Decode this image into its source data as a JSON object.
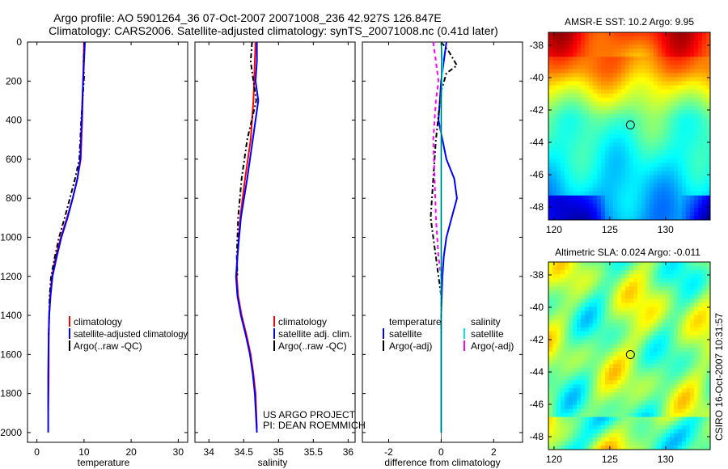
{
  "title_line1": "Argo profile: AO 5901264_36 07-Oct-2007 20071008_236 42.927S 126.847E",
  "title_line2": "Climatology: CARS2006. Satellite-adjusted climatology: synTS_20071008.nc (0.41d later)",
  "credit_line1": "US ARGO PROJECT",
  "credit_line2": "PI: DEAN ROEMMICH",
  "timestamp": "CSIRO 16-Oct-2007 10:31:57",
  "colors": {
    "climatology": "#ff0000",
    "satellite": "#0000ff",
    "argo": "#000000",
    "salinity_sat": "#00e5e5",
    "salinity_argo": "#ff00ff"
  },
  "chart_data": [
    {
      "type": "line",
      "xlabel": "temperature",
      "ylabel": "",
      "xlim": [
        -2,
        32
      ],
      "ylim": [
        2050,
        0
      ],
      "xticks": [
        0,
        10,
        20,
        30
      ],
      "yticks": [
        0,
        200,
        400,
        600,
        800,
        1000,
        1200,
        1400,
        1600,
        1800,
        2000
      ],
      "legend": [
        "climatology",
        "satellite-adjusted climatology",
        "Argo(..raw -QC)"
      ],
      "series": [
        {
          "name": "climatology",
          "x": [
            10.0,
            9.9,
            9.8,
            9.6,
            9.3,
            8.6,
            7.6,
            6.4,
            5.1,
            4.0,
            3.2,
            2.8,
            2.6,
            2.5,
            2.5,
            2.4
          ],
          "y": [
            0,
            100,
            200,
            400,
            600,
            700,
            800,
            900,
            1000,
            1100,
            1200,
            1300,
            1400,
            1500,
            1700,
            1880
          ]
        },
        {
          "name": "satellite-adjusted climatology",
          "x": [
            10.2,
            10.0,
            9.8,
            9.5,
            9.2,
            8.6,
            7.6,
            6.5,
            5.2,
            4.2,
            3.3,
            2.9,
            2.6,
            2.5,
            2.4,
            2.4
          ],
          "y": [
            0,
            100,
            200,
            400,
            600,
            700,
            800,
            900,
            1000,
            1100,
            1200,
            1300,
            1400,
            1500,
            1700,
            2000
          ]
        },
        {
          "name": "Argo(..raw -QC)",
          "x": [
            10.1,
            9.9,
            10.0,
            9.4,
            9.0,
            8.1,
            7.0,
            5.9,
            4.7,
            3.8,
            3.0,
            2.7,
            2.6,
            2.5
          ],
          "y": [
            0,
            100,
            180,
            400,
            600,
            700,
            800,
            900,
            1000,
            1100,
            1200,
            1300,
            1400,
            1500
          ]
        }
      ]
    },
    {
      "type": "line",
      "xlabel": "salinity",
      "xlim": [
        33.8,
        36.1
      ],
      "ylim": [
        2050,
        0
      ],
      "xticks": [
        34,
        34.5,
        35,
        35.5,
        36
      ],
      "legend": [
        "climatology",
        "satellite adj. clim.",
        "Argo(..raw -QC)"
      ],
      "series": [
        {
          "name": "climatology",
          "x": [
            34.67,
            34.66,
            34.65,
            34.64,
            34.6,
            34.52,
            34.45,
            34.41,
            34.4,
            34.42,
            34.47,
            34.54,
            34.6,
            34.64,
            34.67,
            34.69
          ],
          "y": [
            0,
            100,
            200,
            300,
            500,
            700,
            900,
            1100,
            1200,
            1300,
            1400,
            1500,
            1600,
            1700,
            1800,
            1980
          ]
        },
        {
          "name": "satellite adj. clim.",
          "x": [
            34.69,
            34.69,
            34.67,
            34.71,
            34.63,
            34.55,
            34.46,
            34.41,
            34.39,
            34.41,
            34.46,
            34.53,
            34.59,
            34.63,
            34.66,
            34.69
          ],
          "y": [
            0,
            100,
            200,
            300,
            500,
            700,
            900,
            1100,
            1200,
            1300,
            1400,
            1500,
            1600,
            1700,
            1800,
            2000
          ]
        },
        {
          "name": "Argo(..raw -QC)",
          "x": [
            34.62,
            34.6,
            34.64,
            34.68,
            34.55,
            34.47,
            34.42,
            34.4,
            34.41
          ],
          "y": [
            0,
            100,
            200,
            300,
            500,
            700,
            900,
            1100,
            1200
          ]
        }
      ]
    },
    {
      "type": "line",
      "xlabel": "difference from climatology",
      "xlim": [
        -3.0,
        3.1
      ],
      "ylim": [
        2050,
        0
      ],
      "xticks": [
        -2,
        0,
        2
      ],
      "legend_headers": [
        "temperature",
        "salinity"
      ],
      "legend": [
        "satellite",
        "Argo(-adj)",
        "satellite",
        "Argo(-adj)"
      ],
      "series": [
        {
          "name": "temperature satellite",
          "x": [
            0.2,
            0.1,
            0.0,
            -0.1,
            0.2,
            0.5,
            0.6,
            0.4,
            0.2,
            0.1,
            0.05,
            0.0,
            0.0,
            0.0,
            0.0
          ],
          "y": [
            0,
            100,
            200,
            400,
            600,
            700,
            800,
            900,
            1000,
            1100,
            1200,
            1400,
            1600,
            1800,
            2000
          ]
        },
        {
          "name": "temperature Argo(-adj)",
          "x": [
            0.0,
            0.3,
            0.6,
            0.2,
            0.0,
            -0.2,
            -0.3,
            -0.4,
            -0.3,
            -0.2,
            -0.1,
            0.0,
            0.0
          ],
          "y": [
            0,
            50,
            120,
            160,
            250,
            500,
            700,
            900,
            1000,
            1100,
            1200,
            1300,
            1500
          ]
        },
        {
          "name": "salinity satellite",
          "x": [
            0.0,
            0.05,
            0.0,
            0.0,
            0.0,
            0.0,
            0.0,
            0.0
          ],
          "y": [
            0,
            100,
            300,
            600,
            1000,
            1400,
            1800,
            2000
          ]
        },
        {
          "name": "salinity Argo(-adj)",
          "x": [
            -0.3,
            -0.2,
            -0.1,
            -0.2,
            -0.3,
            -0.25,
            -0.2,
            -0.1,
            0.0,
            0.0
          ],
          "y": [
            0,
            100,
            200,
            300,
            500,
            700,
            900,
            1100,
            1200,
            1300
          ]
        }
      ]
    },
    {
      "type": "heatmap",
      "title": "AMSR-E SST: 10.2 Argo: 9.95",
      "xlim": [
        119.5,
        134.0
      ],
      "ylim": [
        -48.8,
        -37.2
      ],
      "xticks": [
        120,
        125,
        130
      ],
      "yticks": [
        -38,
        -40,
        -42,
        -44,
        -46,
        -48
      ],
      "marker": {
        "lon": 126.847,
        "lat": -42.927
      }
    },
    {
      "type": "heatmap",
      "title": "Altimetric SLA: 0.024 Argo: -0.011",
      "xlim": [
        119.5,
        134.0
      ],
      "ylim": [
        -48.8,
        -37.2
      ],
      "xticks": [
        120,
        125,
        130
      ],
      "yticks": [
        -38,
        -40,
        -42,
        -44,
        -46,
        -48
      ],
      "marker": {
        "lon": 126.847,
        "lat": -42.927
      }
    }
  ]
}
